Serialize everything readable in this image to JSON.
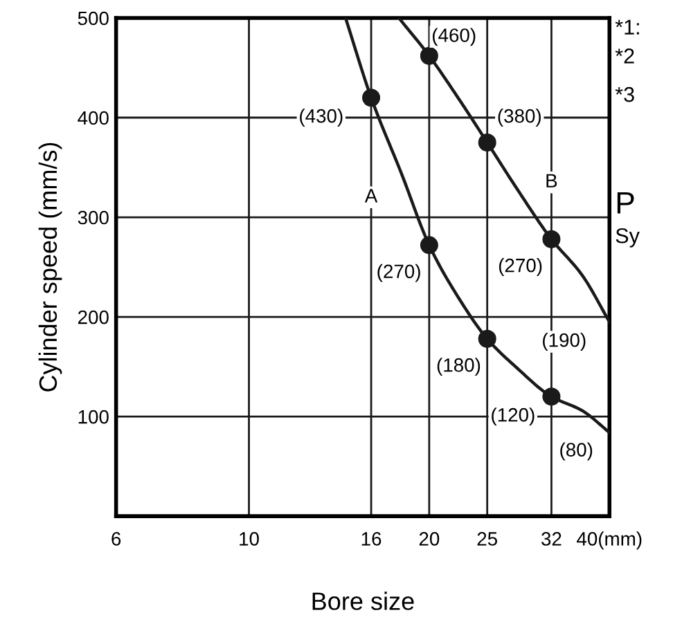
{
  "chart_data": {
    "type": "line",
    "ylabel": "Cylinder speed (mm/s)",
    "xlabel": "Bore size",
    "log": "x",
    "xlim": [
      6,
      40
    ],
    "xticks": [
      6,
      10,
      16,
      20,
      25,
      32,
      {
        "value": 40,
        "label": "40(mm)"
      }
    ],
    "ylim": [
      0,
      500
    ],
    "yticks": [
      100,
      200,
      300,
      400,
      500
    ],
    "grid": true,
    "legend": false,
    "series": [
      {
        "color": "#1a1a1a",
        "marker": "none",
        "x": [
          14.5,
          16,
          18,
          20,
          22.4,
          25,
          28,
          32,
          36,
          40
        ],
        "values": [
          500,
          420,
          343,
          272,
          219,
          178,
          149,
          120,
          106,
          84
        ]
      },
      {
        "color": "#1a1a1a",
        "marker": "none",
        "x": [
          17.8,
          20,
          22.4,
          25,
          28,
          32,
          36,
          40
        ],
        "values": [
          500,
          462,
          419,
          375,
          329,
          278,
          242,
          195
        ]
      },
      {
        "type": "scatter",
        "color": "#1a1a1a",
        "marker": "circle",
        "x": [
          16,
          20,
          25,
          32
        ],
        "values": [
          420,
          272,
          178,
          120
        ]
      },
      {
        "type": "scatter",
        "color": "#1a1a1a",
        "marker": "circle",
        "x": [
          20,
          25,
          32
        ],
        "values": [
          462,
          375,
          278
        ]
      }
    ],
    "annotations": [
      {
        "text": "(460)",
        "x": 22.0,
        "y": 481
      },
      {
        "text": "(430)",
        "x": 13.2,
        "y": 400
      },
      {
        "text": "(380)",
        "x": 28.3,
        "y": 400
      },
      {
        "text": "A",
        "x": 16,
        "y": 320
      },
      {
        "text": "B",
        "x": 32,
        "y": 335
      },
      {
        "text": "(270)",
        "x": 17.8,
        "y": 244
      },
      {
        "text": "(270)",
        "x": 28.4,
        "y": 250
      },
      {
        "text": "(190)",
        "x": 33.6,
        "y": 175
      },
      {
        "text": "(180)",
        "x": 22.4,
        "y": 150
      },
      {
        "text": "(120)",
        "x": 27.6,
        "y": 100
      },
      {
        "text": "(80)",
        "x": 35.2,
        "y": 65
      },
      "*1:",
      "*2",
      "*3",
      "P",
      "Sy"
    ]
  }
}
